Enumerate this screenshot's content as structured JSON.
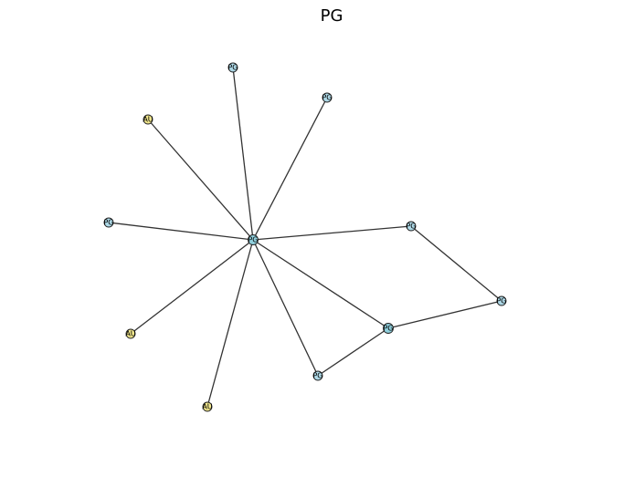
{
  "title": "PG",
  "colors": {
    "PG": "#add8e6",
    "AU": "#f0e68c",
    "hub": "#8fcfdc",
    "edge": "#333333"
  },
  "nodes": [
    {
      "id": "n0",
      "label": "PG",
      "type": "PG"
    },
    {
      "id": "n1",
      "label": "PG",
      "type": "PG"
    },
    {
      "id": "n2",
      "label": "PG",
      "type": "PG"
    },
    {
      "id": "n3",
      "label": "AU",
      "type": "AU"
    },
    {
      "id": "n4",
      "label": "PG",
      "type": "PG"
    },
    {
      "id": "n5",
      "label": "PG",
      "type": "PG"
    },
    {
      "id": "n6",
      "label": "PG",
      "type": "PG"
    },
    {
      "id": "n7",
      "label": "PG",
      "type": "PG"
    },
    {
      "id": "n8",
      "label": "PG",
      "type": "PG"
    },
    {
      "id": "n9",
      "label": "AU",
      "type": "AU"
    },
    {
      "id": "n10",
      "label": "AU",
      "type": "AU"
    }
  ],
  "edges": [
    [
      "n0",
      "n1"
    ],
    [
      "n0",
      "n2"
    ],
    [
      "n0",
      "n3"
    ],
    [
      "n0",
      "n4"
    ],
    [
      "n0",
      "n5"
    ],
    [
      "n0",
      "n7"
    ],
    [
      "n0",
      "n8"
    ],
    [
      "n0",
      "n9"
    ],
    [
      "n0",
      "n10"
    ],
    [
      "n5",
      "n6"
    ],
    [
      "n6",
      "n7"
    ],
    [
      "n7",
      "n8"
    ]
  ]
}
